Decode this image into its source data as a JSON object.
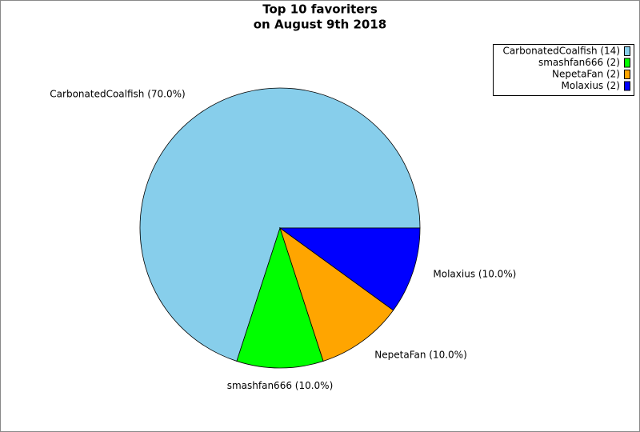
{
  "chart_data": {
    "type": "pie",
    "title": "Top 10 favoriters",
    "subtitle": "on August 9th 2018",
    "categories": [
      "CarbonatedCoalfish",
      "smashfan666",
      "NepetaFan",
      "Molaxius"
    ],
    "values": [
      14,
      2,
      2,
      2
    ],
    "value_labels": [
      "CarbonatedCoalfish (14)",
      "smashfan666 (2)",
      "NepetaFan (2)",
      "Molaxius (2)"
    ],
    "percents": [
      70.0,
      10.0,
      10.0,
      10.0
    ],
    "percent_labels": [
      "CarbonatedCoalfish (70.0%)",
      "smashfan666 (10.0%)",
      "NepetaFan (10.0%)",
      "Molaxius (10.0%)"
    ],
    "colors": [
      "#87ceeb",
      "#00ff00",
      "#ffa500",
      "#0000ff"
    ],
    "legend": "upper right"
  }
}
